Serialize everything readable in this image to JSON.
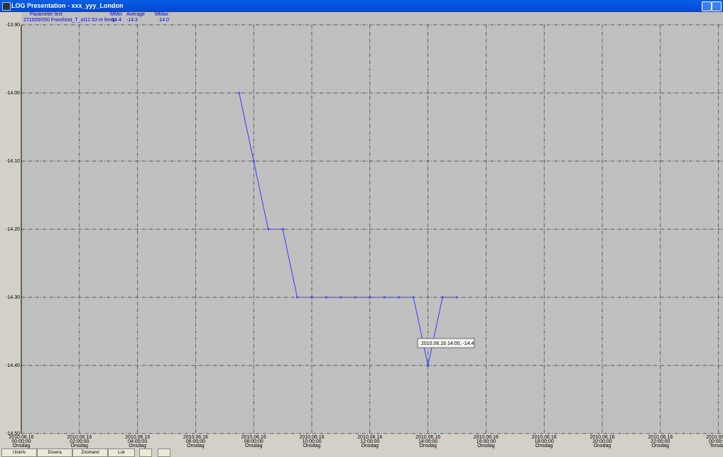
{
  "window": {
    "title": "LOG Presentation - xxx_yyy_London"
  },
  "legend_table": {
    "headers": [
      "Parameter text",
      "MMin",
      "Average",
      "MMax"
    ],
    "row": [
      "271005/050 Fromhost_T_ut12.53 re ferep",
      "-14.4",
      "-14.3",
      "-14.0"
    ]
  },
  "chart_data": {
    "type": "line",
    "x": [
      7.5,
      8,
      8.5,
      9,
      9.5,
      10,
      10.5,
      11,
      11.5,
      12,
      12.5,
      13,
      13.5,
      14,
      14.5,
      15
    ],
    "series": [
      {
        "name": "271005/050 Fromhost_T_ut12.53 re ferep",
        "color": "#3a3aff",
        "values": [
          -14.0,
          -14.1,
          -14.2,
          -14.2,
          -14.3,
          -14.3,
          -14.3,
          -14.3,
          -14.3,
          -14.3,
          -14.3,
          -14.3,
          -14.3,
          -14.4,
          -14.3,
          -14.3
        ]
      }
    ],
    "xlim": [
      0,
      24
    ],
    "xticks": [
      {
        "value": 0,
        "date": "2010.06.16",
        "time": "00:00:00",
        "day": "Onsdag"
      },
      {
        "value": 2,
        "date": "2010.06.16",
        "time": "02:00:00",
        "day": "Onsdag"
      },
      {
        "value": 4,
        "date": "2010.06.16",
        "time": "04:00:00",
        "day": "Onsdag"
      },
      {
        "value": 6,
        "date": "2010.06.16",
        "time": "06:00:00",
        "day": "Onsdag"
      },
      {
        "value": 8,
        "date": "2010.06.16",
        "time": "08:00:00",
        "day": "Onsdag"
      },
      {
        "value": 10,
        "date": "2010.06.16",
        "time": "10:00:00",
        "day": "Onsdag"
      },
      {
        "value": 12,
        "date": "2010.06.16",
        "time": "12:00:00",
        "day": "Onsdag"
      },
      {
        "value": 14,
        "date": "2010.06.16",
        "time": "14:00:00",
        "day": "Onsdag"
      },
      {
        "value": 16,
        "date": "2010.06.16",
        "time": "16:00:00",
        "day": "Onsdag"
      },
      {
        "value": 18,
        "date": "2010.06.16",
        "time": "18:00:00",
        "day": "Onsdag"
      },
      {
        "value": 20,
        "date": "2010.06.16",
        "time": "20:00:00",
        "day": "Onsdag"
      },
      {
        "value": 22,
        "date": "2010.06.16",
        "time": "22:00:00",
        "day": "Onsdag"
      },
      {
        "value": 24,
        "date": "2010.06.17",
        "time": "00:00:00",
        "day": "Torsdag"
      }
    ],
    "ylim": [
      -14.5,
      -13.9
    ],
    "yticks": [
      {
        "value": -14.5,
        "label": "-14.50"
      },
      {
        "value": -14.4,
        "label": "-14.40"
      },
      {
        "value": -14.3,
        "label": "-14.30"
      },
      {
        "value": -14.2,
        "label": "-14.20"
      },
      {
        "value": -14.1,
        "label": "-14.10"
      },
      {
        "value": -14.0,
        "label": "-14.00"
      },
      {
        "value": -13.9,
        "label": "-13.90"
      }
    ],
    "grid": true,
    "annotation": "2010.06.16 14:00, -14.4"
  },
  "buttons": [
    "Utskriv",
    "Dosera",
    "Zoomand",
    "Luk"
  ]
}
